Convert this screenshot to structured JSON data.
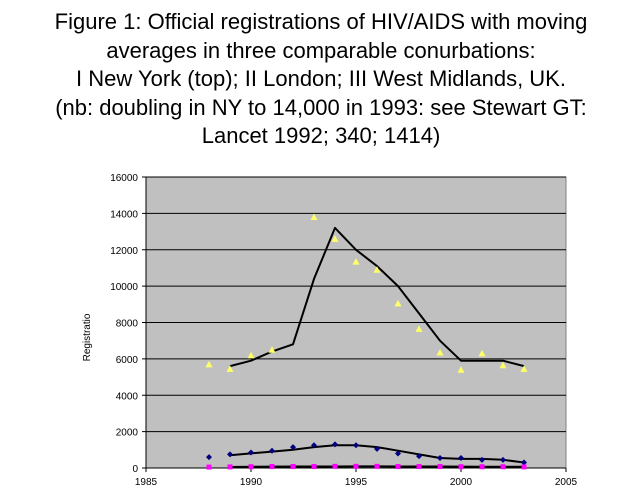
{
  "title_lines": [
    "Figure 1:  Official registrations of HIV/AIDS with moving",
    "averages in three comparable conurbations:",
    "I New York (top); II London; III West Midlands, UK.",
    "(nb: doubling in NY to 14,000 in 1993: see  Stewart GT:",
    "Lancet 1992; 340; 1414)"
  ],
  "chart_data": {
    "type": "scatter",
    "title": "Figure 1:  Official registrations of HIV/AIDS with moving averages in three comparable conurbations: I New York (top); II London; III West Midlands, UK. (nb: doubling in NY to 14,000 in 1993: see  Stewart GT: Lancet 1992; 340; 1414)",
    "xlabel": "",
    "ylabel": "Registratio",
    "xlim": [
      1985,
      2005
    ],
    "ylim": [
      0,
      16000
    ],
    "xticks": [
      1985,
      1990,
      1995,
      2000,
      2005
    ],
    "yticks": [
      0,
      2000,
      4000,
      6000,
      8000,
      10000,
      12000,
      14000,
      16000
    ],
    "grid": "horizontal",
    "plot_background": "#c0c0c0",
    "series": [
      {
        "marker": "triangle",
        "color": "#ffff66",
        "x": [
          1988,
          1989,
          1990,
          1991,
          1993,
          1994,
          1995,
          1996,
          1997,
          1998,
          1999,
          2000,
          2001,
          2002,
          2003
        ],
        "y": [
          5700,
          5450,
          6200,
          6500,
          13800,
          12600,
          11350,
          10900,
          9050,
          7650,
          6350,
          5400,
          6300,
          5650,
          5450
        ]
      },
      {
        "marker": "diamond",
        "color": "#000080",
        "x": [
          1988,
          1989,
          1990,
          1991,
          1992,
          1993,
          1994,
          1995,
          1996,
          1997,
          1998,
          1999,
          2000,
          2001,
          2002,
          2003
        ],
        "y": [
          600,
          750,
          850,
          950,
          1150,
          1250,
          1300,
          1250,
          1050,
          800,
          650,
          550,
          550,
          450,
          450,
          300
        ]
      },
      {
        "marker": "square",
        "color": "#ff00ff",
        "x": [
          1988,
          1989,
          1990,
          1991,
          1992,
          1993,
          1994,
          1995,
          1996,
          1997,
          1998,
          1999,
          2000,
          2001,
          2002,
          2003
        ],
        "y": [
          50,
          60,
          70,
          80,
          80,
          80,
          90,
          90,
          90,
          80,
          80,
          80,
          70,
          70,
          70,
          60
        ]
      }
    ],
    "trendlines": [
      {
        "color": "#000000",
        "x": [
          1989,
          1990,
          1991,
          1992,
          1993,
          1994,
          1995,
          1996,
          1997,
          1998,
          1999,
          2000,
          2001,
          2002,
          2003
        ],
        "y": [
          5600,
          5900,
          6400,
          6800,
          10400,
          13200,
          12000,
          11100,
          10000,
          8500,
          7000,
          5900,
          5900,
          5900,
          5600
        ]
      },
      {
        "color": "#000000",
        "x": [
          1989,
          1990,
          1991,
          1992,
          1993,
          1994,
          1995,
          1996,
          1997,
          1998,
          1999,
          2000,
          2001,
          2002,
          2003
        ],
        "y": [
          700,
          800,
          900,
          1000,
          1150,
          1250,
          1250,
          1150,
          950,
          750,
          550,
          500,
          500,
          450,
          300
        ]
      },
      {
        "color": "#000000",
        "x": [
          1989,
          1990,
          1991,
          1992,
          1993,
          1994,
          1995,
          1996,
          1997,
          1998,
          1999,
          2000,
          2001,
          2002,
          2003
        ],
        "y": [
          55,
          65,
          75,
          80,
          80,
          85,
          90,
          90,
          85,
          80,
          80,
          75,
          70,
          70,
          65
        ]
      }
    ]
  }
}
